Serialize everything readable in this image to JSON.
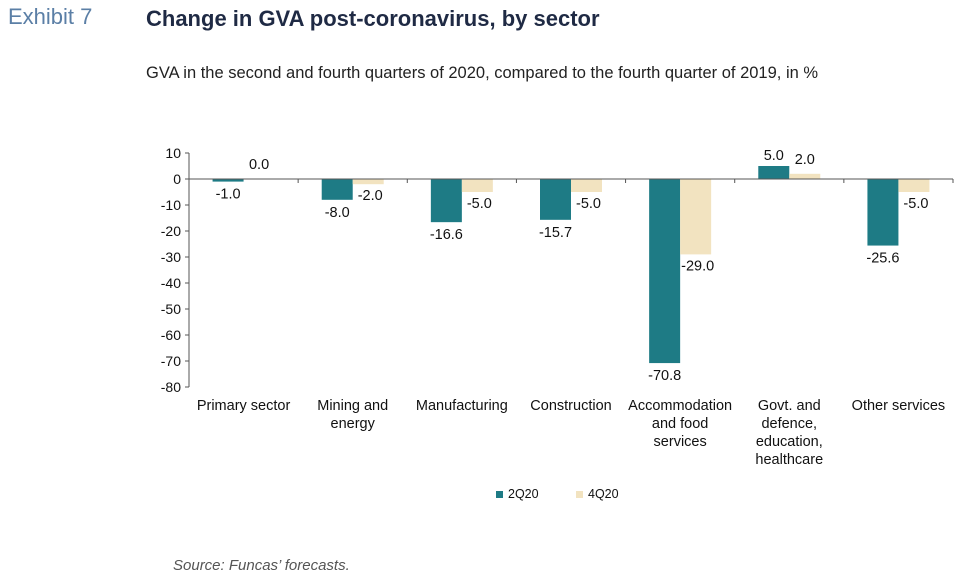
{
  "header": {
    "exhibit": "Exhibit 7",
    "title": "Change in GVA post-coronavirus, by sector",
    "subtitle": "GVA in the second and fourth quarters of 2020, compared to the fourth quarter of 2019, in %"
  },
  "footer": {
    "source": "Source: Funcas’ forecasts."
  },
  "chart_data": {
    "type": "bar",
    "categories": [
      [
        "Primary sector"
      ],
      [
        "Mining and",
        "energy"
      ],
      [
        "Manufacturing"
      ],
      [
        "Construction"
      ],
      [
        "Accommodation",
        "and food",
        "services"
      ],
      [
        "Govt. and",
        "defence,",
        "education,",
        "healthcare"
      ],
      [
        "Other services"
      ]
    ],
    "series": [
      {
        "name": "2Q20",
        "color": "#1e7b85",
        "values": [
          -1.0,
          -8.0,
          -16.6,
          -15.7,
          -70.8,
          5.0,
          -25.6
        ]
      },
      {
        "name": "4Q20",
        "color": "#f2e3c0",
        "values": [
          0.0,
          -2.0,
          -5.0,
          -5.0,
          -29.0,
          2.0,
          -5.0
        ]
      }
    ],
    "ylim": [
      -80,
      10
    ],
    "yticks": [
      10,
      0,
      -10,
      -20,
      -30,
      -40,
      -50,
      -60,
      -70,
      -80
    ],
    "legend_position": "bottom",
    "grid": false
  }
}
